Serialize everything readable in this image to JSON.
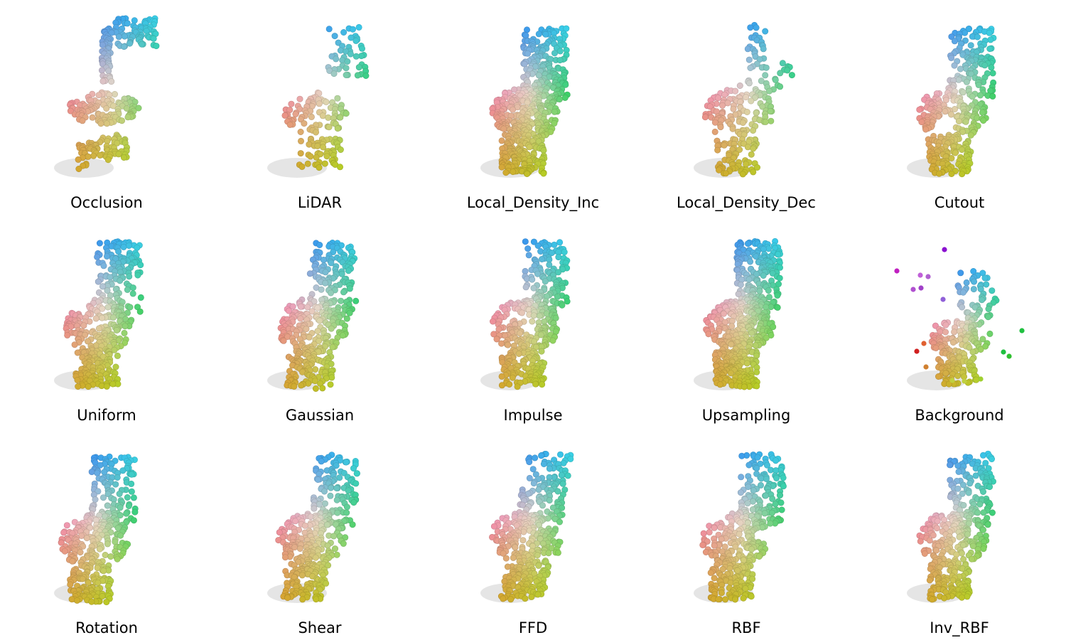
{
  "figure": {
    "panels": [
      {
        "label": "Occlusion",
        "corruption": "occlusion"
      },
      {
        "label": "LiDAR",
        "corruption": "lidar"
      },
      {
        "label": "Local_Density_Inc",
        "corruption": "density_inc"
      },
      {
        "label": "Local_Density_Dec",
        "corruption": "density_dec"
      },
      {
        "label": "Cutout",
        "corruption": "cutout"
      },
      {
        "label": "Uniform",
        "corruption": "uniform"
      },
      {
        "label": "Gaussian",
        "corruption": "gaussian"
      },
      {
        "label": "Impulse",
        "corruption": "impulse"
      },
      {
        "label": "Upsampling",
        "corruption": "upsampling"
      },
      {
        "label": "Background",
        "corruption": "background"
      },
      {
        "label": "Rotation",
        "corruption": "rotation"
      },
      {
        "label": "Shear",
        "corruption": "shear"
      },
      {
        "label": "FFD",
        "corruption": "ffd"
      },
      {
        "label": "RBF",
        "corruption": "rbf"
      },
      {
        "label": "Inv_RBF",
        "corruption": "inv_rbf"
      }
    ],
    "colors": {
      "top": "#3b6cf0",
      "top_right": "#3ad0e8",
      "mid_left": "#f28cb0",
      "mid": "#e6d8c8",
      "mid_right": "#3ccf6a",
      "bottom_left": "#d8a030",
      "bottom_right": "#a8e020"
    }
  }
}
